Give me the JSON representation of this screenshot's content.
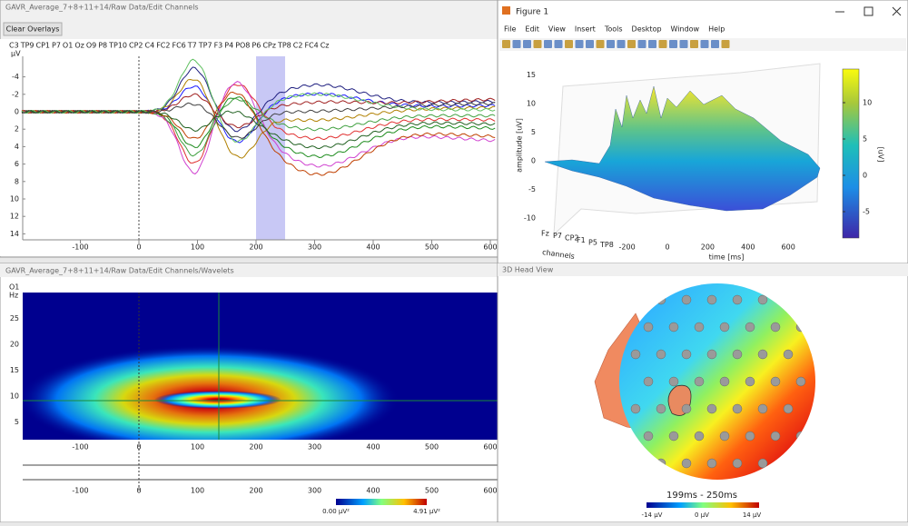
{
  "eeg_window": {
    "title": "GAVR_Average_7+8+11+14/Raw Data/Edit Channels",
    "button": "Clear Overlays",
    "unit": "µV",
    "channels": [
      {
        "name": "C3",
        "color": "#1a1aff"
      },
      {
        "name": "TP9",
        "color": "#e03030"
      },
      {
        "name": "CP1",
        "color": "#202080"
      },
      {
        "name": "P7",
        "color": "#1a8a1a"
      },
      {
        "name": "O1",
        "color": "#d040d0"
      },
      {
        "name": "Oz",
        "color": "#b08000"
      },
      {
        "name": "O9",
        "color": "#40a040"
      },
      {
        "name": "P8",
        "color": "#a02020"
      },
      {
        "name": "TP10",
        "color": "#c04000"
      },
      {
        "name": "CP2",
        "color": "#60c060"
      },
      {
        "name": "C4",
        "color": "#206020"
      },
      {
        "name": "FC2",
        "color": "#404040"
      },
      {
        "name": "FC6",
        "color": "#e0a0a0"
      },
      {
        "name": "T7",
        "color": "#c06060"
      },
      {
        "name": "TP7",
        "color": "#a0a040"
      },
      {
        "name": "F3",
        "color": "#60c0c0"
      },
      {
        "name": "P4",
        "color": "#c080c0"
      },
      {
        "name": "PO8",
        "color": "#303030"
      },
      {
        "name": "P6",
        "color": "#2060a0"
      },
      {
        "name": "CPz",
        "color": "#8080ff"
      },
      {
        "name": "TP8",
        "color": "#000080"
      },
      {
        "name": "C2",
        "color": "#c0c000"
      },
      {
        "name": "FC4",
        "color": "#804080"
      },
      {
        "name": "Cz",
        "color": "#606060"
      }
    ],
    "yticks": [
      -4,
      -2,
      0,
      2,
      4,
      6,
      8,
      10,
      12,
      14
    ],
    "xticks": [
      -100,
      0,
      100,
      200,
      300,
      400,
      500,
      600
    ]
  },
  "figure_window": {
    "title": "Figure 1",
    "menu": [
      "File",
      "Edit",
      "View",
      "Insert",
      "Tools",
      "Desktop",
      "Window",
      "Help"
    ],
    "zlabel": "amplitude [uV]",
    "zticks": [
      15,
      10,
      5,
      0,
      -5,
      -10
    ],
    "xlabel": "time [ms]",
    "xticks": [
      -200,
      0,
      200,
      400,
      600
    ],
    "ylabel": "channels",
    "channel_ticks": [
      "Fz",
      "P7",
      "CP2",
      "F1",
      "P5",
      "TP8"
    ],
    "colorbar_label": "[uV]",
    "colorbar_ticks": [
      10,
      5,
      0,
      -5
    ]
  },
  "wavelet_window": {
    "title": "GAVR_Average_7+8+11+14/Raw Data/Edit Channels/Wavelets",
    "channel": "O1",
    "unit": "Hz",
    "yticks": [
      25,
      20,
      15,
      10,
      5
    ],
    "xticks": [
      -100,
      0,
      100,
      200,
      300,
      400,
      500,
      600
    ],
    "scale_min": "0.00 µV²",
    "scale_max": "4.91 µV²"
  },
  "head_window": {
    "title": "3D Head View",
    "time_range": "199ms - 250ms",
    "scale_labels": [
      "-14 µV",
      "0 µV",
      "14 µV"
    ]
  }
}
